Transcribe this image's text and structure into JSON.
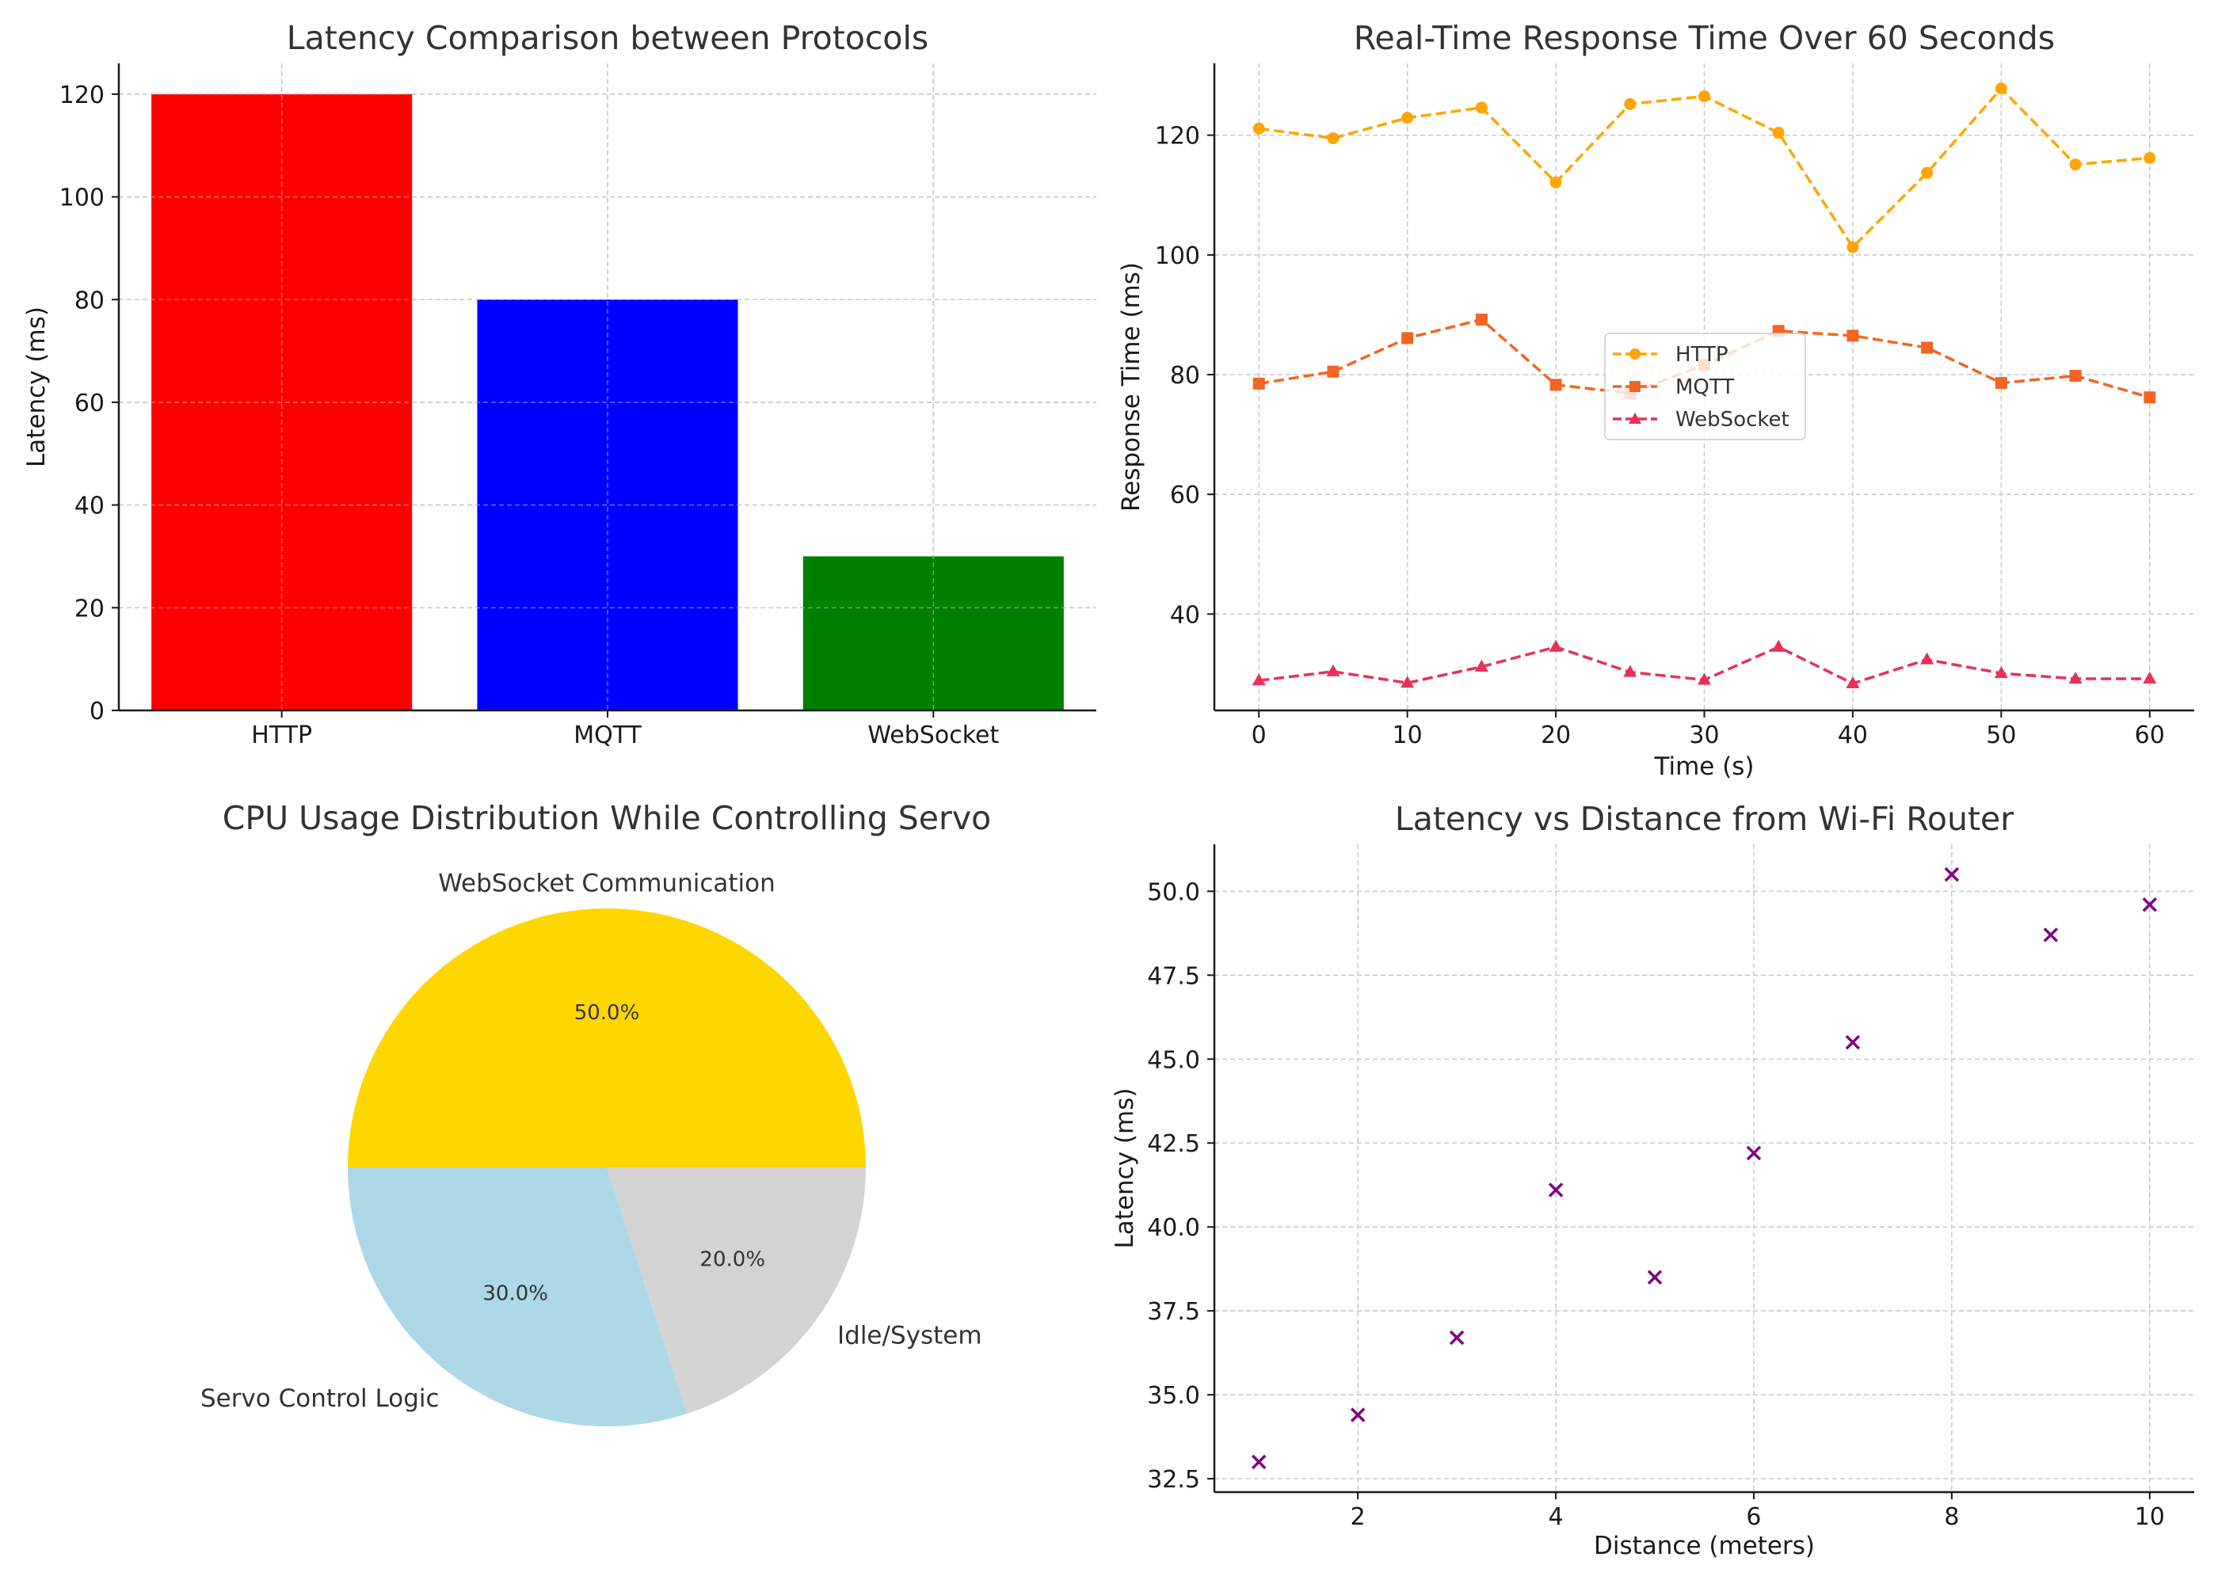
{
  "chart_data": [
    {
      "type": "bar",
      "title": "Latency Comparison between Protocols",
      "xlabel": "",
      "ylabel": "Latency (ms)",
      "categories": [
        "HTTP",
        "MQTT",
        "WebSocket"
      ],
      "values": [
        120,
        80,
        30
      ],
      "colors": [
        "#ff0000",
        "#0000ff",
        "#008000"
      ],
      "ylim": [
        0,
        126
      ],
      "yticks": [
        0,
        20,
        40,
        60,
        80,
        100,
        120
      ],
      "grid": true
    },
    {
      "type": "line",
      "title": "Real-Time Response Time Over 60 Seconds",
      "xlabel": "Time (s)",
      "ylabel": "Response Time (ms)",
      "x": [
        0,
        5,
        10,
        15,
        20,
        25,
        30,
        35,
        40,
        45,
        50,
        55,
        60
      ],
      "xlim": [
        -3,
        63
      ],
      "xticks": [
        0,
        10,
        20,
        30,
        40,
        50,
        60
      ],
      "ylim": [
        23.9,
        132
      ],
      "yticks": [
        40,
        60,
        80,
        100,
        120
      ],
      "grid": true,
      "legend_position": "center",
      "series": [
        {
          "name": "HTTP",
          "color": "#ffa500",
          "marker": "circle",
          "values": [
            121.1,
            119.5,
            122.9,
            124.6,
            112.1,
            125.2,
            126.5,
            120.4,
            101.3,
            113.7,
            127.8,
            115.1,
            116.2
          ]
        },
        {
          "name": "MQTT",
          "color": "#f26522",
          "marker": "square",
          "values": [
            78.5,
            80.5,
            86.1,
            89.2,
            78.3,
            76.9,
            81.6,
            87.3,
            86.5,
            84.5,
            78.6,
            79.8,
            76.2
          ]
        },
        {
          "name": "WebSocket",
          "color": "#e8305a",
          "marker": "triangle",
          "values": [
            28.9,
            30.4,
            28.5,
            31.2,
            34.5,
            30.3,
            29.0,
            34.5,
            28.4,
            32.4,
            30.1,
            29.2,
            29.2
          ]
        }
      ]
    },
    {
      "type": "pie",
      "title": "CPU Usage Distribution While Controlling Servo",
      "slices": [
        {
          "label": "WebSocket Communication",
          "value": 50,
          "pct_label": "50.0%",
          "color": "#ffd700"
        },
        {
          "label": "Servo Control Logic",
          "value": 30,
          "pct_label": "30.0%",
          "color": "#add8e6"
        },
        {
          "label": "Idle/System",
          "value": 20,
          "pct_label": "20.0%",
          "color": "#d3d3d3"
        }
      ]
    },
    {
      "type": "scatter",
      "title": "Latency vs Distance from Wi-Fi Router",
      "xlabel": "Distance (meters)",
      "ylabel": "Latency (ms)",
      "x": [
        1,
        2,
        3,
        4,
        5,
        6,
        7,
        8,
        9,
        10
      ],
      "y": [
        33.0,
        34.4,
        36.7,
        41.1,
        38.5,
        42.2,
        45.5,
        50.5,
        48.7,
        49.6
      ],
      "color": "#800080",
      "marker": "x",
      "xlim": [
        0.55,
        10.45
      ],
      "xticks": [
        2,
        4,
        6,
        8,
        10
      ],
      "ylim": [
        32.1,
        51.4
      ],
      "yticks": [
        32.5,
        35.0,
        37.5,
        40.0,
        42.5,
        45.0,
        47.5,
        50.0
      ],
      "ytick_decimals": 1,
      "grid": true
    }
  ]
}
